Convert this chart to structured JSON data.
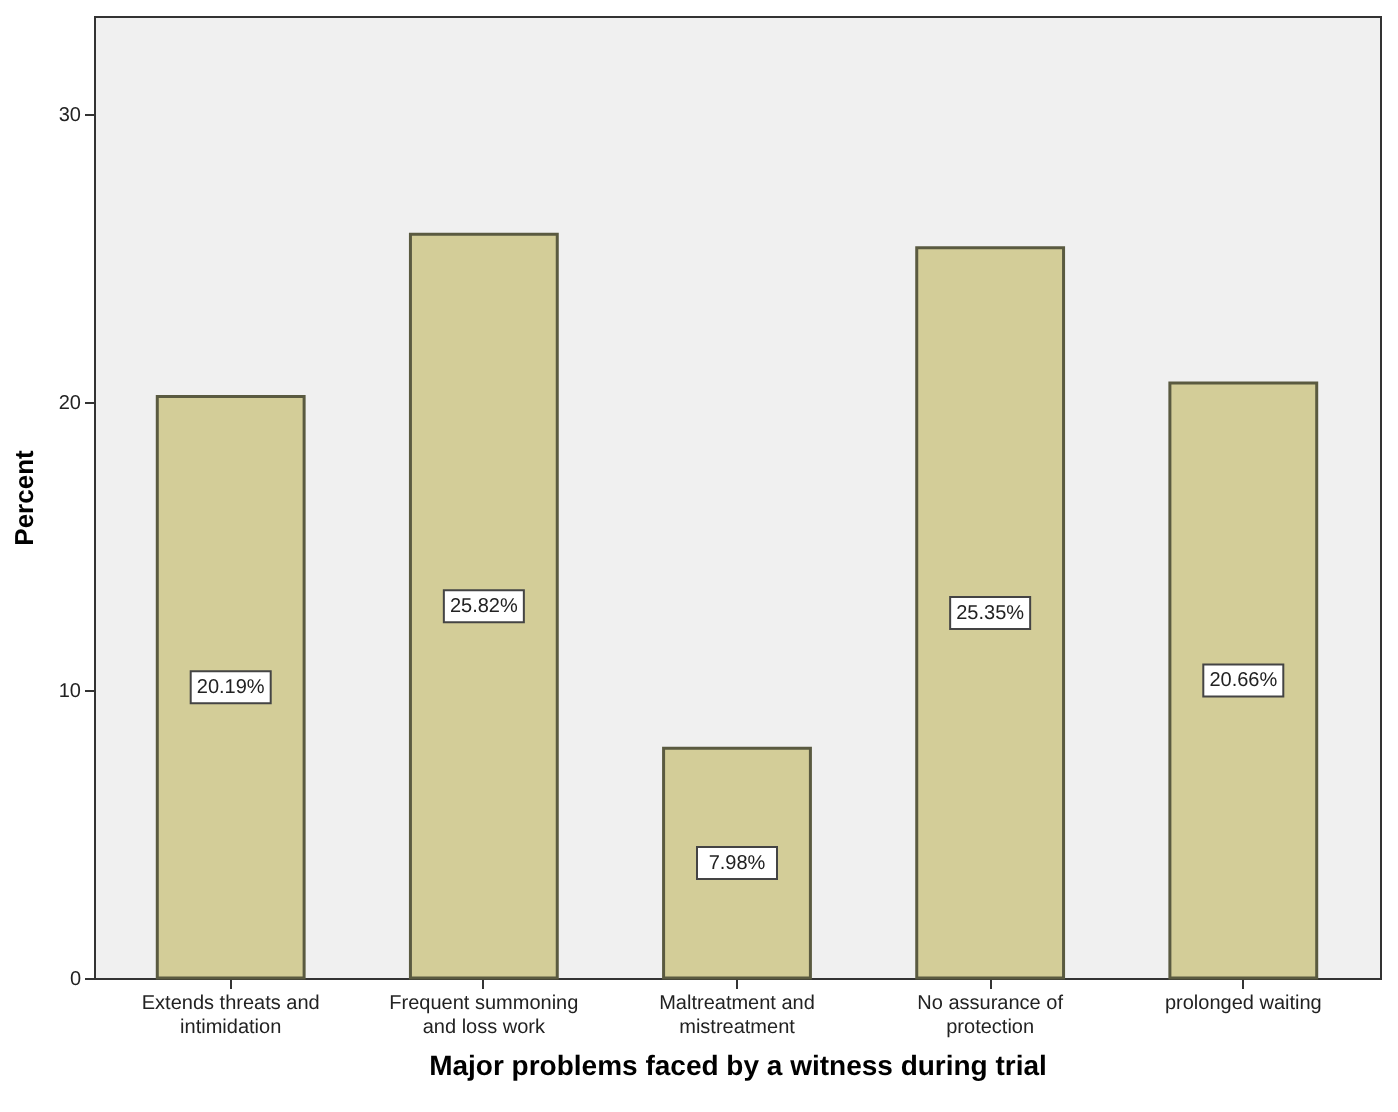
{
  "chart_data": {
    "type": "bar",
    "xlabel": "Major problems faced by a witness during trial",
    "ylabel": "Percent",
    "categories": [
      "Extends threats and intimidation",
      "Frequent summoning and loss work",
      "Maltreatment and mistreatment",
      "No assurance of protection",
      "prolonged waiting"
    ],
    "values": [
      20.19,
      25.82,
      7.98,
      25.35,
      20.66
    ],
    "value_labels": [
      "20.19%",
      "25.82%",
      "7.98%",
      "25.35%",
      "20.66%"
    ],
    "color": "#d3cd98",
    "ylim": [
      0,
      33.4
    ],
    "yticks": [
      0,
      10,
      20,
      30
    ],
    "grid": false
  }
}
